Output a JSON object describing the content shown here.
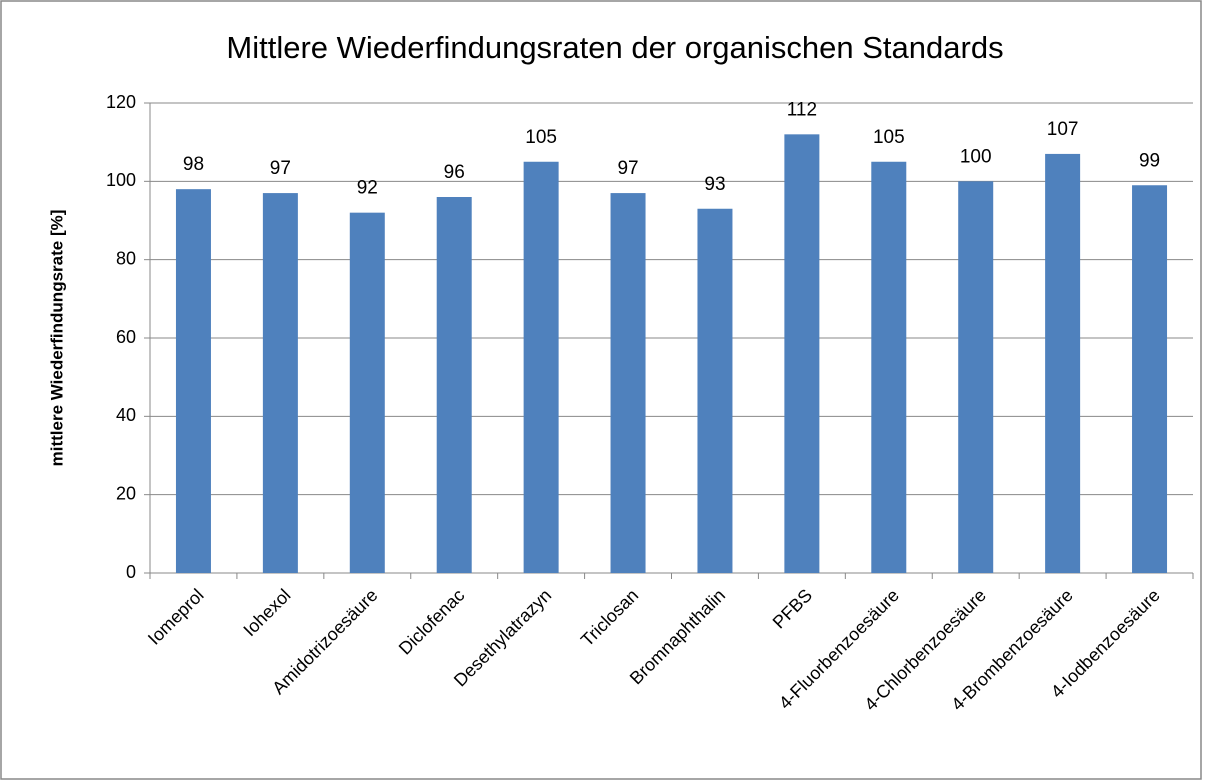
{
  "chart_data": {
    "type": "bar",
    "title": "Mittlere Wiederfindungsraten der organischen Standards",
    "y_label": "mittlere Wiederfindungsrate [%]",
    "categories": [
      "Iomeprol",
      "Iohexol",
      "Amidotrizoesäure",
      "Diclofenac",
      "Desethylatrazyn",
      "Triclosan",
      "Bromnaphthalin",
      "PFBS",
      "4-Fluorbenzoesäure",
      "4-Chlorbenzoesäure",
      "4-Brombenzoesäure",
      "4-Iodbenzoesäure"
    ],
    "values": [
      98,
      97,
      92,
      96,
      105,
      97,
      93,
      112,
      105,
      100,
      107,
      99
    ],
    "color": "#4f81bd",
    "ylim": [
      0,
      120
    ],
    "yticks": [
      0,
      20,
      40,
      60,
      80,
      100,
      120
    ],
    "grid": true
  }
}
